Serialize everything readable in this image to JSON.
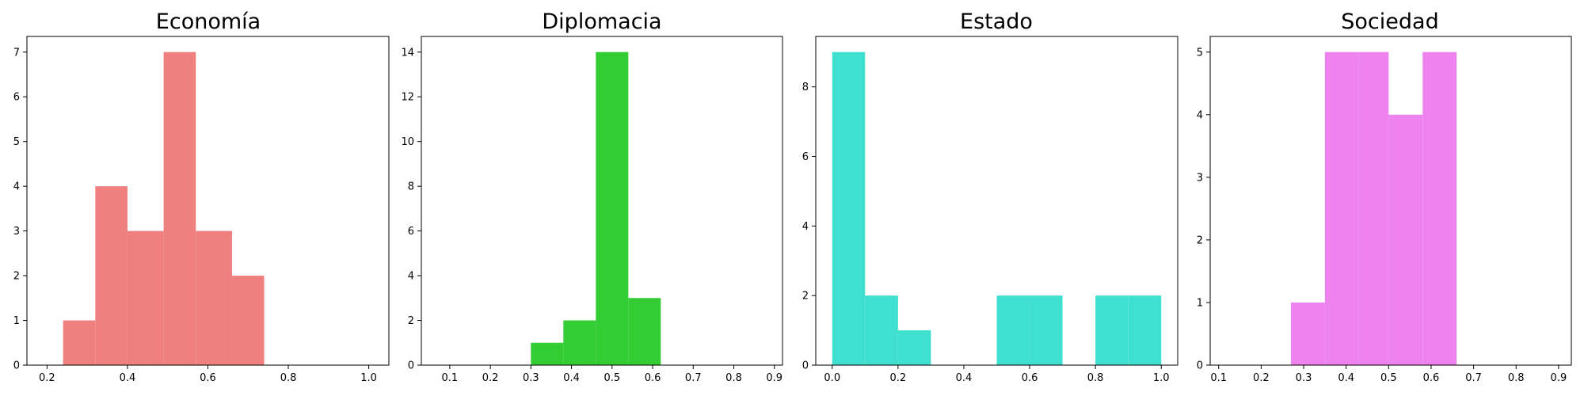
{
  "chart_data": [
    {
      "type": "bar",
      "subtype": "histogram",
      "title": "Economía",
      "color": "#f08080",
      "xlim": [
        0.15,
        1.05
      ],
      "ylim": [
        0,
        7.35
      ],
      "xticks": [
        0.2,
        0.4,
        0.6,
        0.8,
        1.0
      ],
      "xtick_labels": [
        "0.2",
        "0.4",
        "0.6",
        "0.8",
        "1.0"
      ],
      "yticks": [
        0,
        1,
        2,
        3,
        4,
        5,
        6,
        7
      ],
      "ytick_labels": [
        "0",
        "1",
        "2",
        "3",
        "4",
        "5",
        "6",
        "7"
      ],
      "bins": [
        {
          "x0": 0.24,
          "x1": 0.32,
          "count": 1
        },
        {
          "x0": 0.32,
          "x1": 0.4,
          "count": 4
        },
        {
          "x0": 0.4,
          "x1": 0.49,
          "count": 3
        },
        {
          "x0": 0.49,
          "x1": 0.57,
          "count": 7
        },
        {
          "x0": 0.57,
          "x1": 0.66,
          "count": 3
        },
        {
          "x0": 0.66,
          "x1": 0.74,
          "count": 2
        }
      ]
    },
    {
      "type": "bar",
      "subtype": "histogram",
      "title": "Diplomacia",
      "color": "#32cd32",
      "xlim": [
        0.03,
        0.92
      ],
      "ylim": [
        0,
        14.7
      ],
      "xticks": [
        0.1,
        0.2,
        0.3,
        0.4,
        0.5,
        0.6,
        0.7,
        0.8,
        0.9
      ],
      "xtick_labels": [
        "0.1",
        "0.2",
        "0.3",
        "0.4",
        "0.5",
        "0.6",
        "0.7",
        "0.8",
        "0.9"
      ],
      "yticks": [
        0,
        2,
        4,
        6,
        8,
        10,
        12,
        14
      ],
      "ytick_labels": [
        "0",
        "2",
        "4",
        "6",
        "8",
        "10",
        "12",
        "14"
      ],
      "bins": [
        {
          "x0": 0.3,
          "x1": 0.38,
          "count": 1
        },
        {
          "x0": 0.38,
          "x1": 0.46,
          "count": 2
        },
        {
          "x0": 0.46,
          "x1": 0.54,
          "count": 14
        },
        {
          "x0": 0.54,
          "x1": 0.62,
          "count": 3
        }
      ]
    },
    {
      "type": "bar",
      "subtype": "histogram",
      "title": "Estado",
      "color": "#40e0d0",
      "xlim": [
        -0.05,
        1.05
      ],
      "ylim": [
        0,
        9.45
      ],
      "xticks": [
        0.0,
        0.2,
        0.4,
        0.6,
        0.8,
        1.0
      ],
      "xtick_labels": [
        "0.0",
        "0.2",
        "0.4",
        "0.6",
        "0.8",
        "1.0"
      ],
      "yticks": [
        0,
        2,
        4,
        6,
        8
      ],
      "ytick_labels": [
        "0",
        "2",
        "4",
        "6",
        "8"
      ],
      "bins": [
        {
          "x0": 0.0,
          "x1": 0.1,
          "count": 9
        },
        {
          "x0": 0.1,
          "x1": 0.2,
          "count": 2
        },
        {
          "x0": 0.2,
          "x1": 0.3,
          "count": 1
        },
        {
          "x0": 0.5,
          "x1": 0.6,
          "count": 2
        },
        {
          "x0": 0.6,
          "x1": 0.7,
          "count": 2
        },
        {
          "x0": 0.8,
          "x1": 0.9,
          "count": 2
        },
        {
          "x0": 0.9,
          "x1": 1.0,
          "count": 2
        }
      ]
    },
    {
      "type": "bar",
      "subtype": "histogram",
      "title": "Sociedad",
      "color": "#ee82ee",
      "xlim": [
        0.08,
        0.93
      ],
      "ylim": [
        0,
        5.25
      ],
      "xticks": [
        0.1,
        0.2,
        0.3,
        0.4,
        0.5,
        0.6,
        0.7,
        0.8,
        0.9
      ],
      "xtick_labels": [
        "0.1",
        "0.2",
        "0.3",
        "0.4",
        "0.5",
        "0.6",
        "0.7",
        "0.8",
        "0.9"
      ],
      "yticks": [
        0,
        1,
        2,
        3,
        4,
        5
      ],
      "ytick_labels": [
        "0",
        "1",
        "2",
        "3",
        "4",
        "5"
      ],
      "bins": [
        {
          "x0": 0.27,
          "x1": 0.35,
          "count": 1
        },
        {
          "x0": 0.35,
          "x1": 0.43,
          "count": 5
        },
        {
          "x0": 0.43,
          "x1": 0.5,
          "count": 5
        },
        {
          "x0": 0.5,
          "x1": 0.58,
          "count": 4
        },
        {
          "x0": 0.58,
          "x1": 0.66,
          "count": 5
        }
      ]
    }
  ]
}
